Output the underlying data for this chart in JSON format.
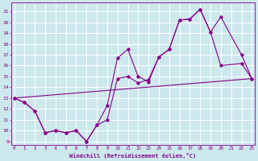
{
  "xlabel": "Windchill (Refroidissement éolien,°C)",
  "bg_color": "#cce8ed",
  "line_color": "#880088",
  "xlim": [
    -0.3,
    23.3
  ],
  "ylim": [
    8.7,
    21.8
  ],
  "yticks": [
    9,
    10,
    11,
    12,
    13,
    14,
    15,
    16,
    17,
    18,
    19,
    20,
    21
  ],
  "xticks": [
    0,
    1,
    2,
    3,
    4,
    5,
    6,
    7,
    8,
    9,
    10,
    11,
    12,
    13,
    14,
    15,
    16,
    17,
    18,
    19,
    20,
    21,
    22,
    23
  ],
  "line1_x": [
    0,
    1,
    2,
    3,
    4,
    5,
    6,
    7,
    8,
    9,
    10,
    11,
    12,
    13,
    14,
    15,
    16,
    17,
    18,
    19,
    20,
    22,
    23
  ],
  "line1_y": [
    13,
    12.6,
    11.8,
    9.8,
    10.0,
    9.8,
    10.0,
    9.0,
    10.5,
    12.3,
    16.7,
    17.5,
    15.0,
    14.5,
    16.8,
    17.5,
    20.2,
    20.3,
    21.2,
    19.1,
    20.5,
    17.0,
    14.8
  ],
  "line2_x": [
    0,
    1,
    2,
    3,
    4,
    5,
    6,
    7,
    8,
    9,
    10,
    11,
    12,
    13,
    14,
    15,
    16,
    17,
    18,
    19,
    20,
    22,
    23
  ],
  "line2_y": [
    13,
    12.6,
    11.8,
    9.8,
    10.0,
    9.8,
    10.0,
    9.0,
    10.5,
    11.0,
    14.8,
    15.0,
    14.4,
    14.7,
    16.8,
    17.5,
    20.2,
    20.3,
    21.2,
    19.1,
    16.0,
    16.2,
    14.8
  ],
  "line3_x": [
    0,
    23
  ],
  "line3_y": [
    13,
    14.8
  ]
}
